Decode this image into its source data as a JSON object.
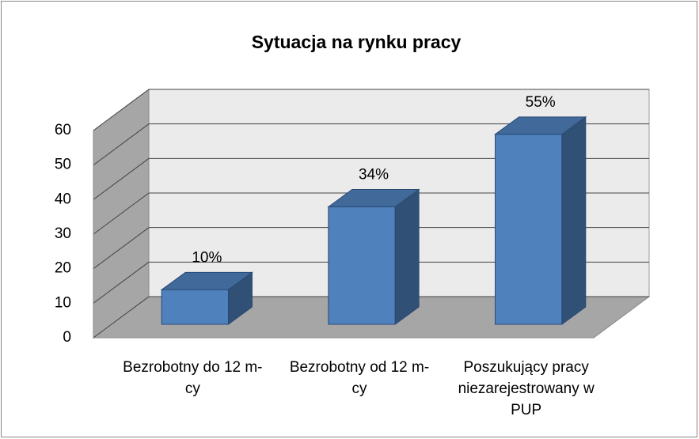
{
  "chart_data": {
    "type": "bar3d",
    "title": "Sytuacja na rynku pracy",
    "categories": [
      "Bezrobotny do 12 m-cy",
      "Bezrobotny od 12 m-cy",
      "Poszukujący pracy niezarejestrowany w PUP"
    ],
    "values": [
      10,
      34,
      55
    ],
    "value_labels": [
      "10%",
      "34%",
      "55%"
    ],
    "color": "#4f81bd",
    "ylim": [
      0,
      60
    ],
    "yticks": [
      0,
      10,
      20,
      30,
      40,
      50,
      60
    ],
    "grid": true
  }
}
